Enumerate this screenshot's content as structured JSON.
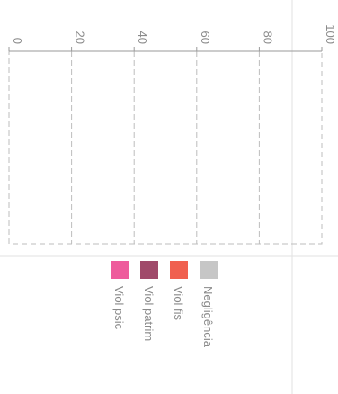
{
  "chart_data": {
    "type": "bar",
    "orientation": "rotated-90",
    "title": "",
    "xlabel": "",
    "ylabel": "",
    "ylim": [
      0,
      100
    ],
    "yticks": [
      0,
      20,
      40,
      60,
      80,
      100
    ],
    "categories": [],
    "series": [
      {
        "name": "Negligência",
        "color": "#c6c6c6",
        "values": []
      },
      {
        "name": "Viol fis",
        "color": "#f0604f",
        "values": []
      },
      {
        "name": "Viol patrim",
        "color": "#a04a6a",
        "values": []
      },
      {
        "name": "Viol psic",
        "color": "#ee5b9c",
        "values": []
      }
    ],
    "grid": true,
    "legend_position": "bottom"
  }
}
